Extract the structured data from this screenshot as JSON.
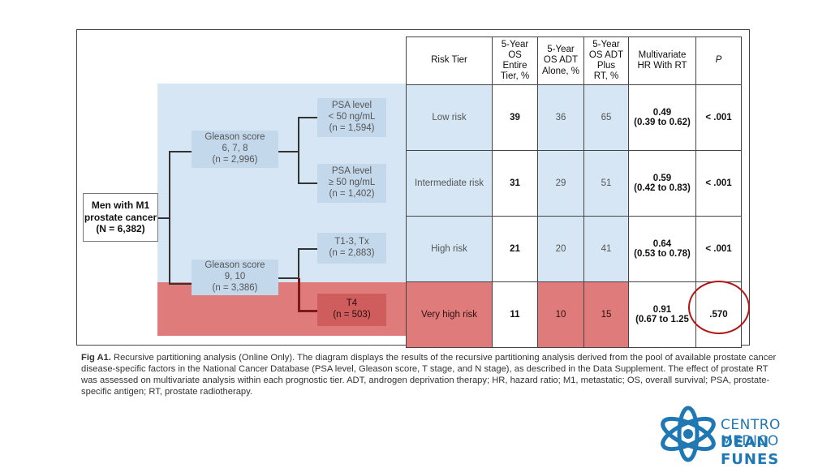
{
  "figure": {
    "root_node": "Men with M1 prostate cancer (N = 6,382)",
    "root_lines": [
      "Men with M1",
      "prostate cancer",
      "(N = 6,382)"
    ],
    "gleason_low": [
      "Gleason score",
      "6, 7, 8",
      "(n = 2,996)"
    ],
    "gleason_high": [
      "Gleason score",
      "9, 10",
      "(n = 3,386)"
    ],
    "psa_low": [
      "PSA level",
      "< 50 ng/mL",
      "(n = 1,594)"
    ],
    "psa_high": [
      "PSA level",
      "≥ 50 ng/mL",
      "(n = 1,402)"
    ],
    "t13": [
      "T1-3, Tx",
      "(n = 2,883)"
    ],
    "t4": [
      "T4",
      "(n = 503)"
    ]
  },
  "table": {
    "headers": {
      "tier": "Risk Tier",
      "os_entire": [
        "5-Year",
        "OS",
        "Entire",
        "Tier, %"
      ],
      "os_adt": [
        "5-Year",
        "OS ADT",
        "Alone, %"
      ],
      "os_adt_rt": [
        "5-Year",
        "OS ADT",
        "Plus",
        "RT, %"
      ],
      "hr": [
        "Multivariate",
        "HR With RT"
      ],
      "p": "P"
    },
    "rows": [
      {
        "tier": "Low risk",
        "os_entire": "39",
        "os_adt": "36",
        "os_adt_rt": "65",
        "hr": "0.49",
        "ci": "(0.39 to 0.62)",
        "p": "< .001"
      },
      {
        "tier": "Intermediate risk",
        "os_entire": "31",
        "os_adt": "29",
        "os_adt_rt": "51",
        "hr": "0.59",
        "ci": "(0.42 to 0.83)",
        "p": "< .001"
      },
      {
        "tier": "High risk",
        "os_entire": "21",
        "os_adt": "20",
        "os_adt_rt": "41",
        "hr": "0.64",
        "ci": "(0.53 to 0.78)",
        "p": "< .001"
      },
      {
        "tier": "Very high risk",
        "os_entire": "11",
        "os_adt": "10",
        "os_adt_rt": "15",
        "hr": "0.91",
        "ci": "(0.67 to 1.25",
        "p": ".570"
      }
    ]
  },
  "caption": {
    "label": "Fig A1.",
    "text": "Recursive partitioning analysis (Online Only). The diagram displays the results of the recursive partitioning analysis derived from the pool of available prostate cancer disease-specific factors in the National Cancer Database (PSA level, Gleason score, T stage, and N stage), as described in the Data Supplement. The effect of prostate RT was assessed on multivariate analysis within each prognostic tier. ADT, androgen deprivation therapy; HR, hazard ratio; M1, metastatic; OS, overall survival; PSA, prostate-specific antigen; RT, prostate radiotherapy."
  },
  "logo": {
    "line1": "CENTRO MEDICO",
    "line2": "DEAN FUNES",
    "color": "#1f78b4"
  },
  "colors": {
    "blue_zone": "#d7e6f4",
    "red_zone": "#e07b7b",
    "highlight_circle": "#b01818"
  }
}
